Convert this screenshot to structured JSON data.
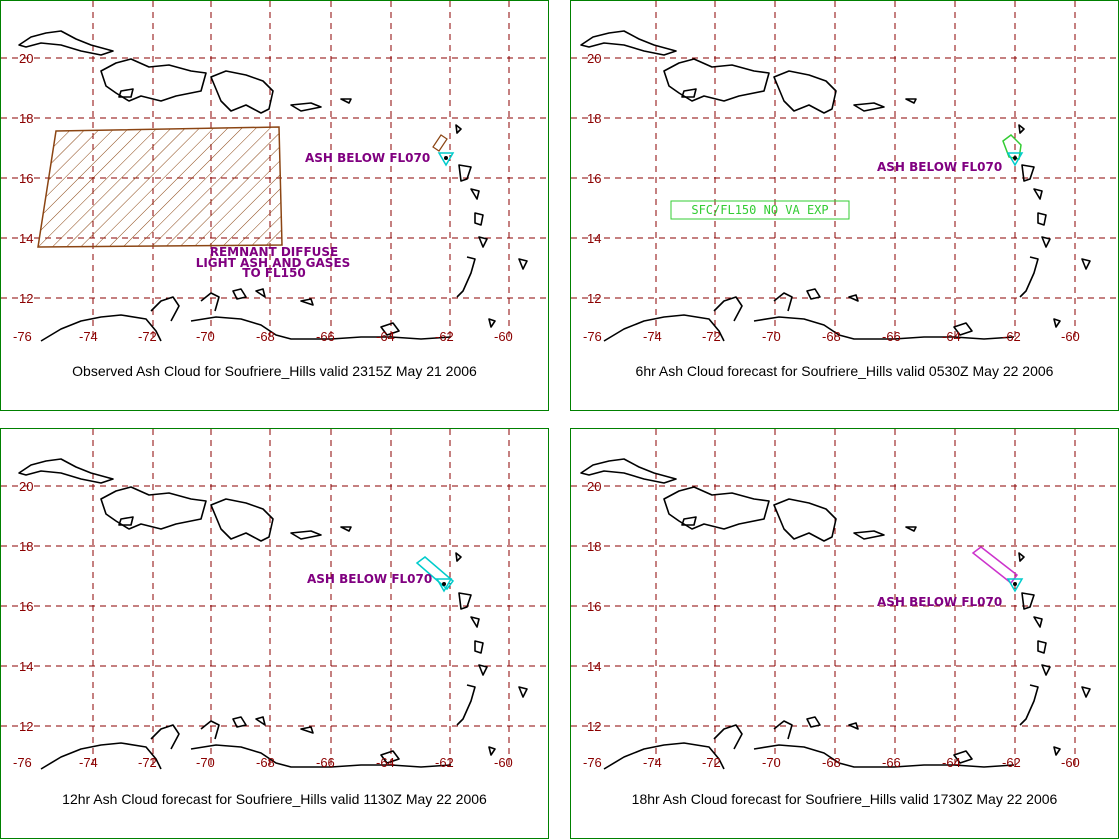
{
  "panels": [
    {
      "caption": "Observed Ash Cloud for Soufriere_Hills valid 2315Z May 21 2006",
      "labels": [
        "ASH BELOW FL070",
        "REMNANT DIFFUSE",
        "LIGHT ASH AND GASES",
        "TO FL150"
      ]
    },
    {
      "caption": "6hr Ash Cloud forecast for Soufriere_Hills valid 0530Z May 22 2006",
      "labels": [
        "ASH BELOW FL070",
        "SFC/FL150 NO VA EXP"
      ]
    },
    {
      "caption": "12hr Ash Cloud forecast for Soufriere_Hills valid 1130Z May 22 2006",
      "labels": [
        "ASH BELOW FL070"
      ]
    },
    {
      "caption": "18hr Ash Cloud forecast for Soufriere_Hills valid 1730Z May 22 2006",
      "labels": [
        "ASH BELOW FL070"
      ]
    }
  ],
  "axes": {
    "lon_ticks": [
      "-76",
      "-74",
      "-72",
      "-70",
      "-68",
      "-66",
      "-64",
      "-62",
      "-60"
    ],
    "lat_ticks": [
      "20",
      "18",
      "16",
      "14",
      "12"
    ]
  },
  "colors": {
    "border": "#008000",
    "grid": "#8b0000",
    "label": "#800080",
    "ash_observed": "#8b4513",
    "ash_6hr": "#33cc33",
    "ash_12hr": "#00cccc",
    "ash_18hr": "#cc33cc",
    "volcano_marker": "#00cccc"
  }
}
